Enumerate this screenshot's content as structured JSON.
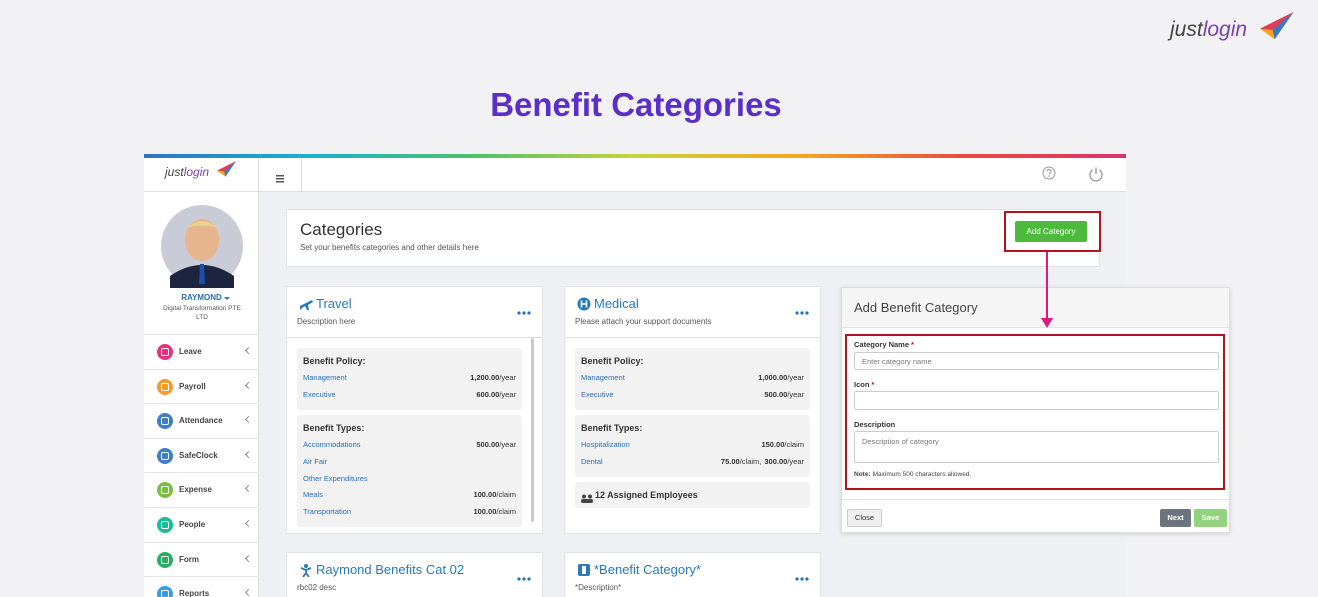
{
  "brand": {
    "just": "just",
    "login": "login"
  },
  "title": "Benefit Categories",
  "app": {
    "brand": {
      "just": "just",
      "login": "login"
    },
    "user": {
      "name": "RAYMOND",
      "company": "Digital Transformation PTE LTD"
    },
    "menu": [
      "Leave",
      "Payroll",
      "Attendance",
      "SafeClock",
      "Expense",
      "People",
      "Form",
      "Reports"
    ],
    "header": {
      "title": "Categories",
      "subtitle": "Set your benefits categories and other details here",
      "button": "Add Category"
    },
    "cards": [
      {
        "title": "Travel",
        "description": "Description here",
        "policy_heading": "Benefit Policy:",
        "policies": [
          {
            "label": "Management",
            "amounts": [
              {
                "amount": "1,200.00",
                "unit": "/year"
              }
            ]
          },
          {
            "label": "Executive",
            "amounts": [
              {
                "amount": "600.00",
                "unit": "/year"
              }
            ]
          }
        ],
        "types_heading": "Benefit Types:",
        "types": [
          {
            "label": "Accommodations",
            "amounts": [
              {
                "amount": "500.00",
                "unit": "/year"
              }
            ]
          },
          {
            "label": "Air Fair",
            "amounts": []
          },
          {
            "label": "Other Expenditures",
            "amounts": []
          },
          {
            "label": "Meals",
            "amounts": [
              {
                "amount": "100.00",
                "unit": "/claim"
              }
            ]
          },
          {
            "label": "Transportation",
            "amounts": [
              {
                "amount": "100.00",
                "unit": "/claim"
              }
            ]
          }
        ]
      },
      {
        "title": "Medical",
        "description": "Please attach your support documents",
        "policy_heading": "Benefit Policy:",
        "policies": [
          {
            "label": "Management",
            "amounts": [
              {
                "amount": "1,000.00",
                "unit": "/year"
              }
            ]
          },
          {
            "label": "Executive",
            "amounts": [
              {
                "amount": "500.00",
                "unit": "/year"
              }
            ]
          }
        ],
        "types_heading": "Benefit Types:",
        "types": [
          {
            "label": "Hospitalization",
            "amounts": [
              {
                "amount": "150.00",
                "unit": "/claim"
              }
            ]
          },
          {
            "label": "Dental",
            "amounts": [
              {
                "amount": "75.00",
                "unit": "/claim,"
              },
              {
                "amount": "300.00",
                "unit": "/year"
              }
            ]
          }
        ],
        "employees": "12 Assigned Employees"
      },
      {
        "title": "Raymond Benefits Cat 02",
        "description": "rbc02 desc"
      },
      {
        "title": "*Benefit Category*",
        "description": "*Description*"
      }
    ],
    "modal": {
      "title": "Add Benefit Category",
      "name_label": "Category Name",
      "required": "*",
      "name_placeholder": "Enter category name",
      "icon_label": "Icon",
      "description_label": "Description",
      "description_placeholder": "Description of category",
      "note_bold": "Note:",
      "note": "Maximum 500 characters allowed.",
      "close": "Close",
      "next": "Next",
      "save": "Save"
    }
  }
}
